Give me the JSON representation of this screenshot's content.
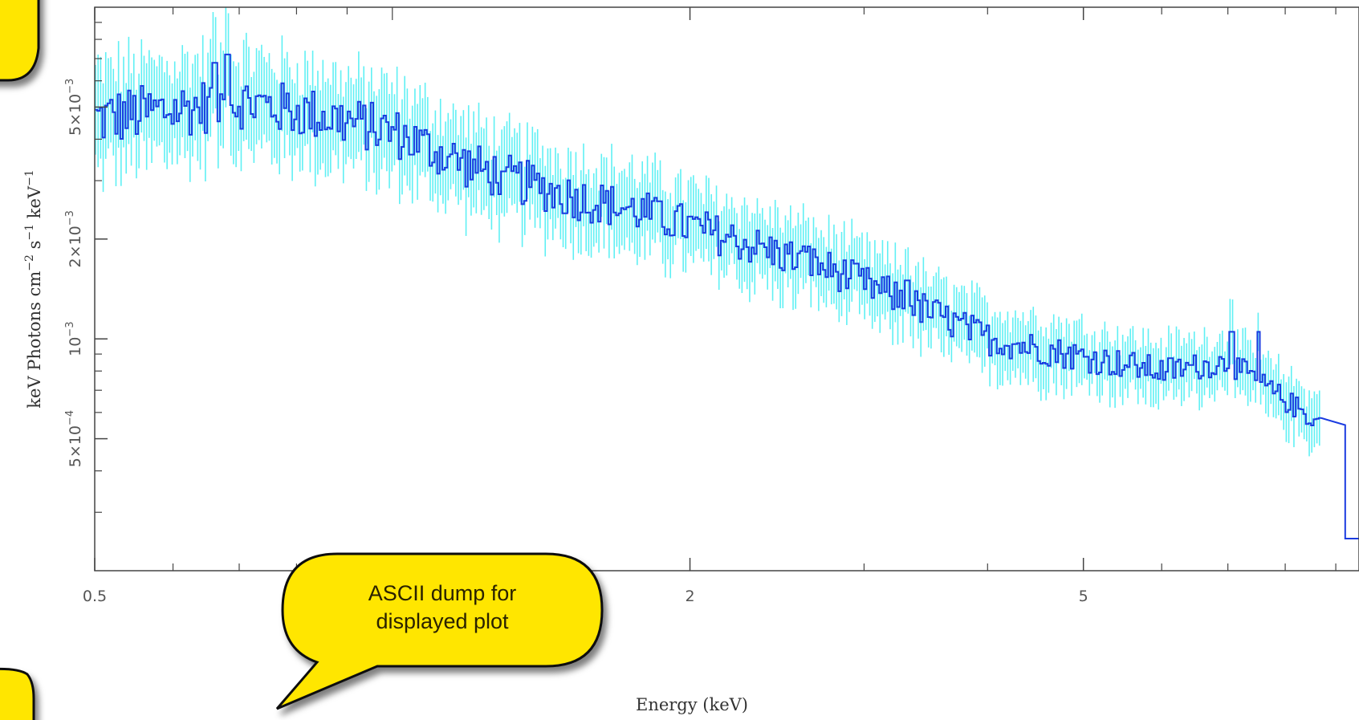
{
  "chart_data": {
    "type": "line",
    "xlabel": "Energy (keV)",
    "ylabel": "keV Photons cm",
    "ylabel_parts": {
      "unit_cm_exp": "−2",
      "unit_s": "s",
      "unit_s_exp": "−1",
      "unit_kev": "keV",
      "unit_kev_exp": "−1"
    },
    "x_scale": "log",
    "y_scale": "log",
    "xlim": [
      0.5,
      9.5
    ],
    "ylim": [
      0.0002,
      0.01
    ],
    "x_ticks": [
      {
        "value": 0.5,
        "label": "0.5"
      },
      {
        "value": 2,
        "label": "2"
      },
      {
        "value": 5,
        "label": "5"
      }
    ],
    "y_ticks": [
      {
        "value": 0.0005,
        "mantissa": "5×10",
        "exp": "−4"
      },
      {
        "value": 0.001,
        "mantissa": "10",
        "exp": "−3"
      },
      {
        "value": 0.002,
        "mantissa": "2×10",
        "exp": "−3"
      },
      {
        "value": 0.005,
        "mantissa": "5×10",
        "exp": "−3"
      }
    ],
    "grid": false,
    "series": [
      {
        "color": "#1a3be0",
        "error_color": "#5ff0f4",
        "anchors": [
          {
            "x": 0.5,
            "y": 0.0046
          },
          {
            "x": 0.7,
            "y": 0.0052
          },
          {
            "x": 0.85,
            "y": 0.0047
          },
          {
            "x": 1.0,
            "y": 0.0042
          },
          {
            "x": 1.2,
            "y": 0.0033
          },
          {
            "x": 1.5,
            "y": 0.0027
          },
          {
            "x": 1.8,
            "y": 0.0024
          },
          {
            "x": 2.2,
            "y": 0.002
          },
          {
            "x": 2.8,
            "y": 0.0016
          },
          {
            "x": 3.5,
            "y": 0.0012
          },
          {
            "x": 4.0,
            "y": 0.001
          },
          {
            "x": 5.0,
            "y": 0.00088
          },
          {
            "x": 6.0,
            "y": 0.0008
          },
          {
            "x": 7.0,
            "y": 0.00085
          },
          {
            "x": 8.0,
            "y": 0.00065
          },
          {
            "x": 8.7,
            "y": 0.00055
          }
        ],
        "spikes": [
          {
            "x": 0.68,
            "y": 0.0072
          },
          {
            "x": 0.66,
            "y": 0.0068
          },
          {
            "x": 1.29,
            "y": 0.0032
          },
          {
            "x": 1.86,
            "y": 0.0026
          },
          {
            "x": 2.63,
            "y": 0.0019
          },
          {
            "x": 3.3,
            "y": 0.0015
          },
          {
            "x": 7.05,
            "y": 0.00105
          },
          {
            "x": 7.5,
            "y": 0.00105
          }
        ],
        "cutoff": {
          "x": 9.2,
          "y": 0.00025
        }
      }
    ]
  },
  "callouts": [
    {
      "lines": [
        "ASCII dump for",
        "displayed plot"
      ],
      "fill": "#ffe600"
    }
  ]
}
